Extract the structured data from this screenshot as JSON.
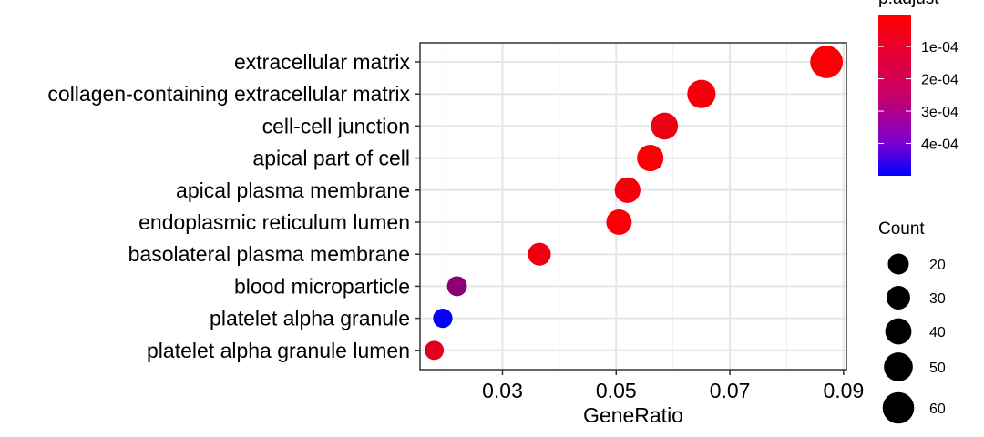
{
  "chart_data": {
    "type": "scatter",
    "title": "",
    "xlabel": "GeneRatio",
    "ylabel": "",
    "xlim": [
      0.0155,
      0.0905
    ],
    "x_ticks": [
      "0.03",
      "0.05",
      "0.07",
      "0.09"
    ],
    "grid": true,
    "categories": [
      "extracellular matrix",
      "collagen-containing extracellular matrix",
      "cell-cell junction",
      "apical part of cell",
      "apical plasma membrane",
      "endoplasmic reticulum lumen",
      "basolateral plasma membrane",
      "blood microparticle",
      "platelet alpha granule",
      "platelet alpha granule lumen"
    ],
    "points": [
      {
        "category": "extracellular matrix",
        "gene_ratio": 0.087,
        "count": 64,
        "p_adjust": 1e-05
      },
      {
        "category": "collagen-containing extracellular matrix",
        "gene_ratio": 0.065,
        "count": 48,
        "p_adjust": 2e-05
      },
      {
        "category": "cell-cell junction",
        "gene_ratio": 0.0585,
        "count": 43,
        "p_adjust": 4e-05
      },
      {
        "category": "apical part of cell",
        "gene_ratio": 0.056,
        "count": 41,
        "p_adjust": 1e-05
      },
      {
        "category": "apical plasma membrane",
        "gene_ratio": 0.052,
        "count": 38,
        "p_adjust": 2e-05
      },
      {
        "category": "endoplasmic reticulum lumen",
        "gene_ratio": 0.0505,
        "count": 37,
        "p_adjust": 1e-05
      },
      {
        "category": "basolateral plasma membrane",
        "gene_ratio": 0.0365,
        "count": 27,
        "p_adjust": 3e-05
      },
      {
        "category": "blood microparticle",
        "gene_ratio": 0.022,
        "count": 16,
        "p_adjust": 0.00023
      },
      {
        "category": "platelet alpha granule",
        "gene_ratio": 0.0195,
        "count": 14,
        "p_adjust": 0.00049
      },
      {
        "category": "platelet alpha granule lumen",
        "gene_ratio": 0.018,
        "count": 13,
        "p_adjust": 6e-05
      }
    ],
    "color_legend": {
      "title": "p.adjust",
      "labels": [
        "1e-04",
        "2e-04",
        "3e-04",
        "4e-04"
      ],
      "values": [
        0.0001,
        0.0002,
        0.0003,
        0.0004
      ],
      "domain": [
        1e-06,
        0.0005
      ],
      "low_color": "#FF0000",
      "high_color": "#0000FF"
    },
    "size_legend": {
      "title": "Count",
      "labels": [
        "20",
        "30",
        "40",
        "50",
        "60"
      ],
      "values": [
        20,
        30,
        40,
        50,
        60
      ]
    }
  }
}
